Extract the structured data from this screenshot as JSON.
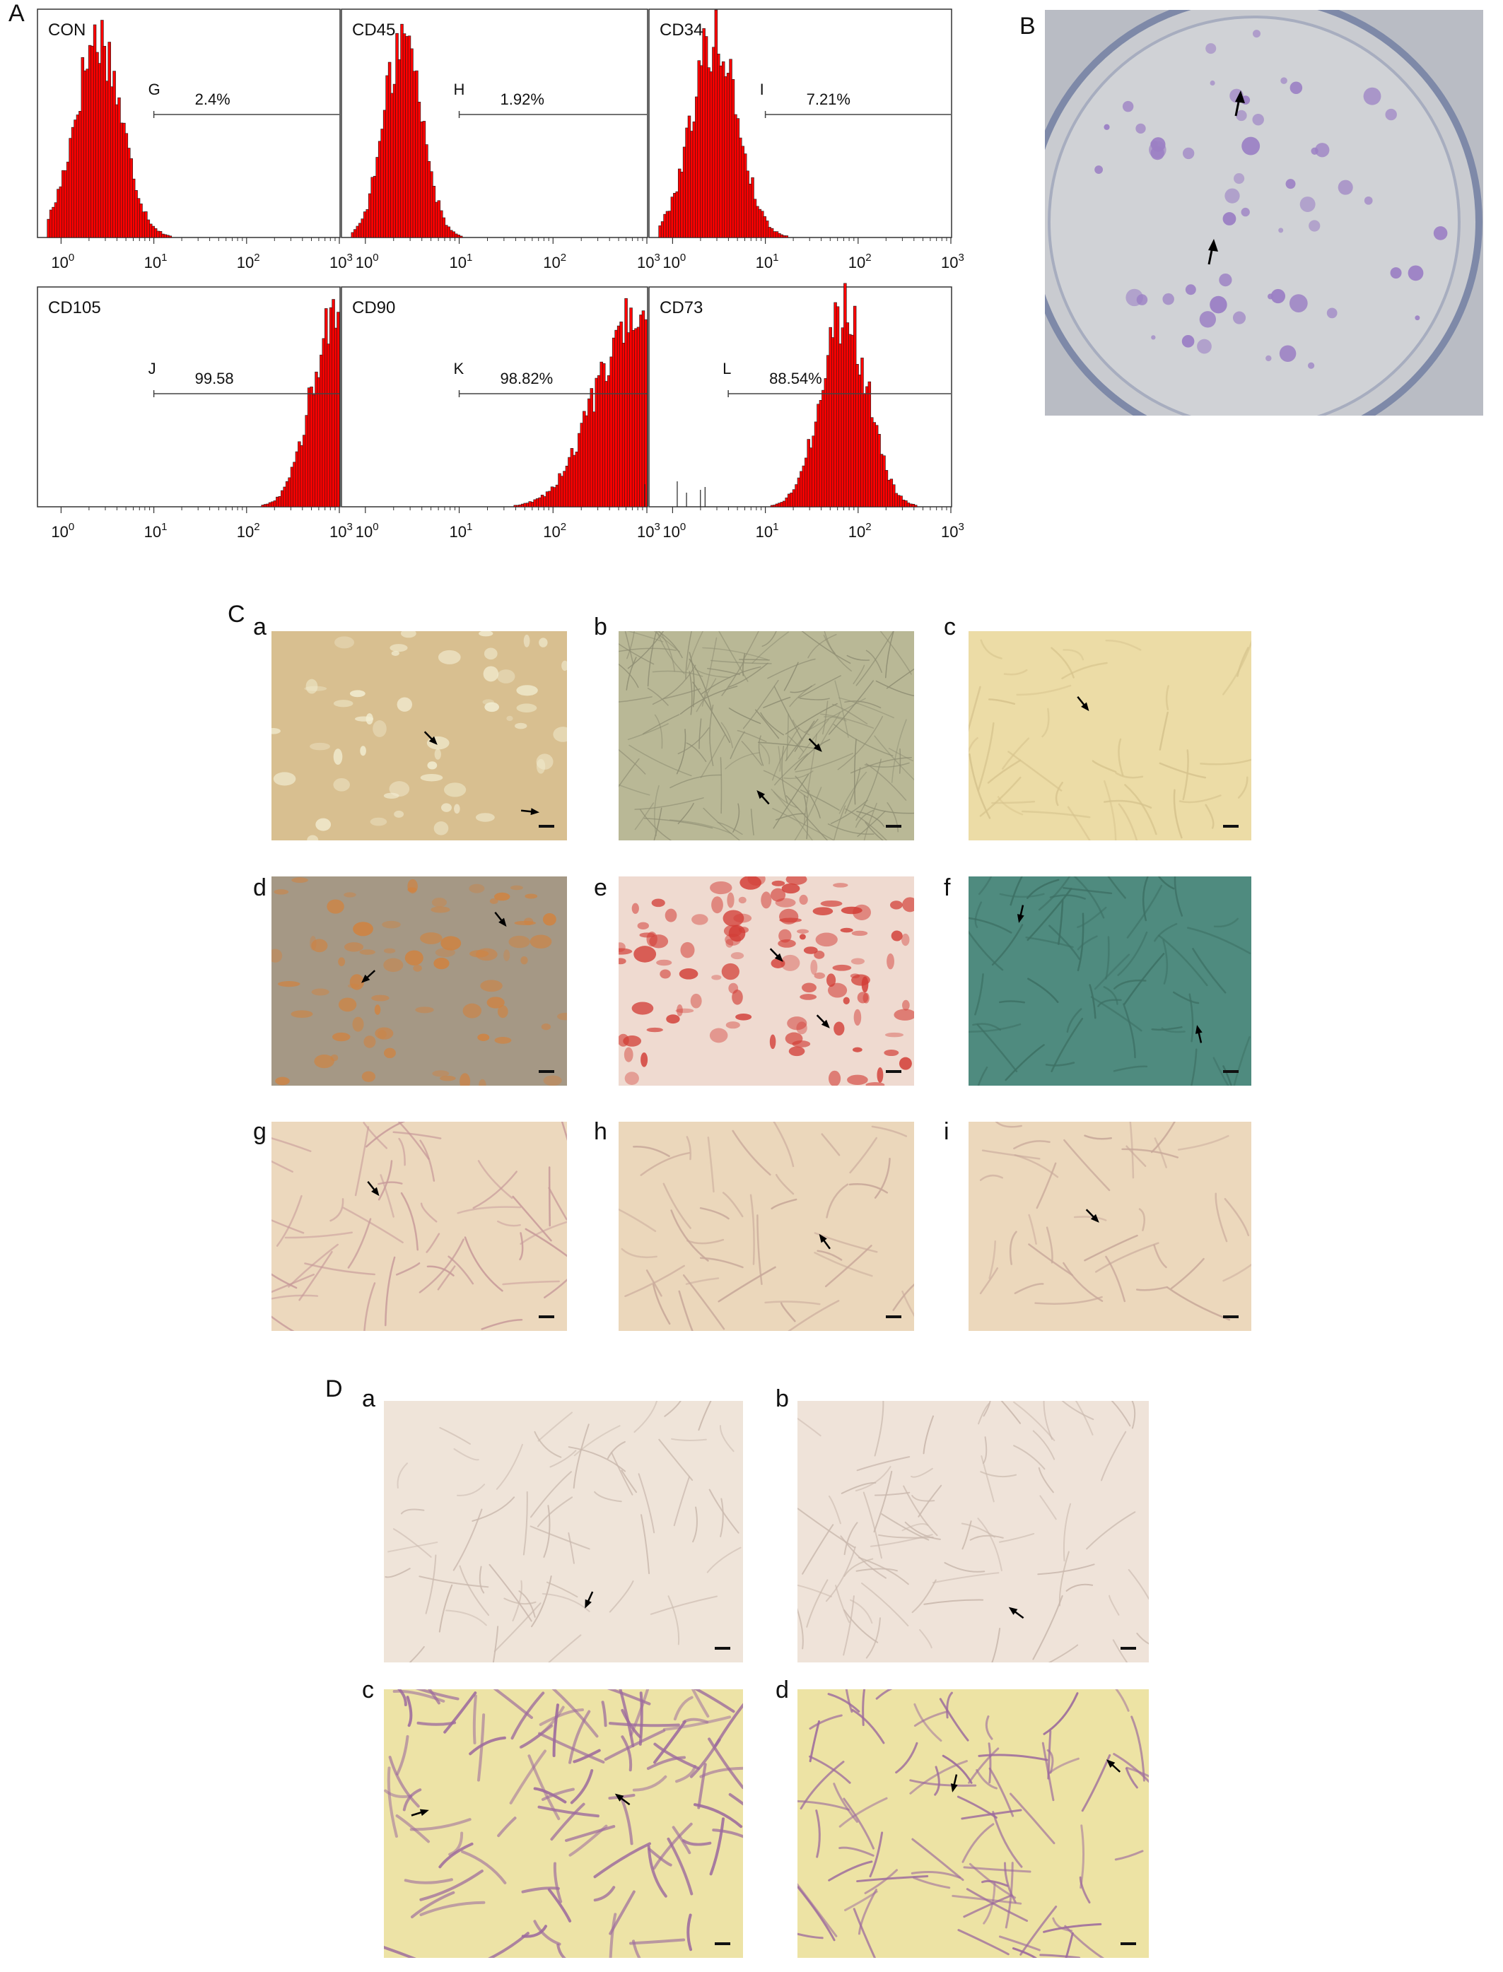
{
  "figure": {
    "panel_labels": {
      "A": "A",
      "B": "B",
      "C": "C",
      "D": "D"
    },
    "c_sub_labels": [
      "a",
      "b",
      "c",
      "d",
      "e",
      "f",
      "g",
      "h",
      "i"
    ],
    "d_sub_labels": [
      "a",
      "b",
      "c",
      "d"
    ]
  },
  "chart_data": [
    {
      "type": "histogram",
      "title": "CON",
      "gate_letter": "G",
      "gate_value": "2.4%",
      "x_scale": "log",
      "xlim": [
        1,
        1000
      ],
      "x_ticks": [
        "10^0",
        "10^1",
        "10^2",
        "10^3"
      ],
      "peak_center_log": 0.4,
      "peak_spread_log": 0.25,
      "gate_start_log": 1.0
    },
    {
      "type": "histogram",
      "title": "CD45",
      "gate_letter": "H",
      "gate_value": "1.92%",
      "x_scale": "log",
      "xlim": [
        1,
        1000
      ],
      "x_ticks": [
        "10^0",
        "10^1",
        "10^2",
        "10^3"
      ],
      "peak_center_log": 0.4,
      "peak_spread_log": 0.2,
      "gate_start_log": 1.0
    },
    {
      "type": "histogram",
      "title": "CD34",
      "gate_letter": "I",
      "gate_value": "7.21%",
      "x_scale": "log",
      "xlim": [
        1,
        1000
      ],
      "x_ticks": [
        "10^0",
        "10^1",
        "10^2",
        "10^3"
      ],
      "peak_center_log": 0.45,
      "peak_spread_log": 0.25,
      "gate_start_log": 1.0
    },
    {
      "type": "histogram",
      "title": "CD105",
      "gate_letter": "J",
      "gate_value": "99.58",
      "x_scale": "log",
      "xlim": [
        1,
        1000
      ],
      "x_ticks": [
        "10^0",
        "10^1",
        "10^2",
        "10^3"
      ],
      "peak_center_log": 2.95,
      "peak_spread_log": 0.25,
      "gate_start_log": 1.0
    },
    {
      "type": "histogram",
      "title": "CD90",
      "gate_letter": "K",
      "gate_value": "98.82%",
      "x_scale": "log",
      "xlim": [
        1,
        1000
      ],
      "x_ticks": [
        "10^0",
        "10^1",
        "10^2",
        "10^3"
      ],
      "peak_center_log": 2.85,
      "peak_spread_log": 0.4,
      "gate_start_log": 1.0
    },
    {
      "type": "histogram",
      "title": "CD73",
      "gate_letter": "L",
      "gate_value": "88.54%",
      "x_scale": "log",
      "xlim": [
        1,
        1000
      ],
      "x_ticks": [
        "10^0",
        "10^1",
        "10^2",
        "10^3"
      ],
      "peak_center_log": 1.85,
      "peak_spread_log": 0.25,
      "gate_start_log": 0.6
    }
  ],
  "colors": {
    "histogram_fill": "#ff0000",
    "histogram_outline": "#1a1a1a",
    "dish_bg": "#c9cbd0",
    "colony": "#9b7fc4",
    "ca_bg": "#d8bf90",
    "cb_bg": "#b9b896",
    "cc_bg": "#ecdca6",
    "cd_bg": "#a59885",
    "ce_bg": "#efdad0",
    "ce_spot": "#d23c35",
    "cf_bg": "#4f8b7f",
    "cg_bg": "#ecd8bd",
    "ch_bg": "#ebd7bb",
    "ci_bg": "#ecd8bc",
    "da_bg": "#efe4d9",
    "db_bg": "#efe3d9",
    "dc_bg": "#ede3a6",
    "dd_bg": "#ede3a4",
    "cell_purple": "#9c6a9d"
  }
}
